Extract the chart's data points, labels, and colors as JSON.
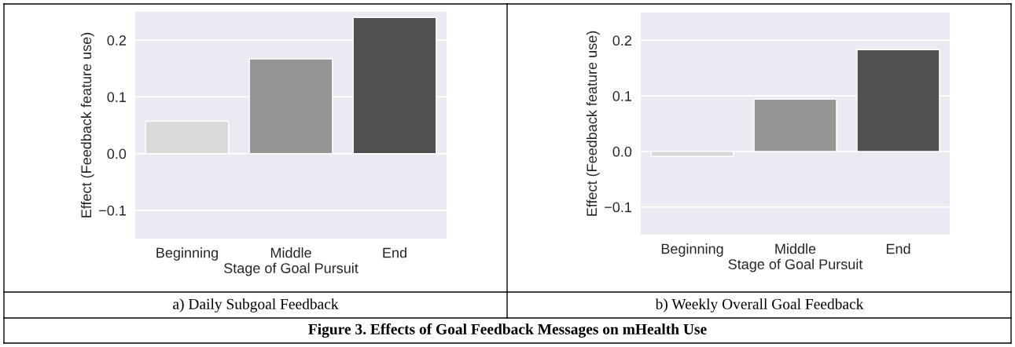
{
  "chart_data": [
    {
      "type": "bar",
      "title": "a) Daily Subgoal Feedback",
      "xlabel": "Stage of Goal Pursuit",
      "ylabel": "Effect (Feedback feature use)",
      "categories": [
        "Beginning",
        "Middle",
        "End"
      ],
      "values": [
        0.057,
        0.167,
        0.24
      ],
      "colors": [
        "#d9d9d9",
        "#959595",
        "#505050"
      ],
      "ylim": [
        -0.15,
        0.25
      ],
      "yticks": [
        {
          "value": -0.1,
          "label": "−0.1"
        },
        {
          "value": 0.0,
          "label": "0.0"
        },
        {
          "value": 0.1,
          "label": "0.1"
        },
        {
          "value": 0.2,
          "label": "0.2"
        }
      ],
      "grid": "y",
      "annotations": [
        "Figure 3. Effects of Goal Feedback Messages on mHealth Use"
      ]
    },
    {
      "type": "bar",
      "title": "b) Weekly Overall Goal Feedback",
      "xlabel": "Stage of Goal Pursuit",
      "ylabel": "Effect (Feedback feature use)",
      "categories": [
        "Beginning",
        "Middle",
        "End"
      ],
      "values": [
        -0.009,
        0.094,
        0.183
      ],
      "colors": [
        "#d9d9d9",
        "#959595",
        "#505050"
      ],
      "ylim": [
        -0.15,
        0.25
      ],
      "yticks": [
        {
          "value": -0.1,
          "label": "−0.1"
        },
        {
          "value": 0.0,
          "label": "0.0"
        },
        {
          "value": 0.1,
          "label": "0.1"
        },
        {
          "value": 0.2,
          "label": "0.2"
        }
      ],
      "grid": "y"
    }
  ]
}
